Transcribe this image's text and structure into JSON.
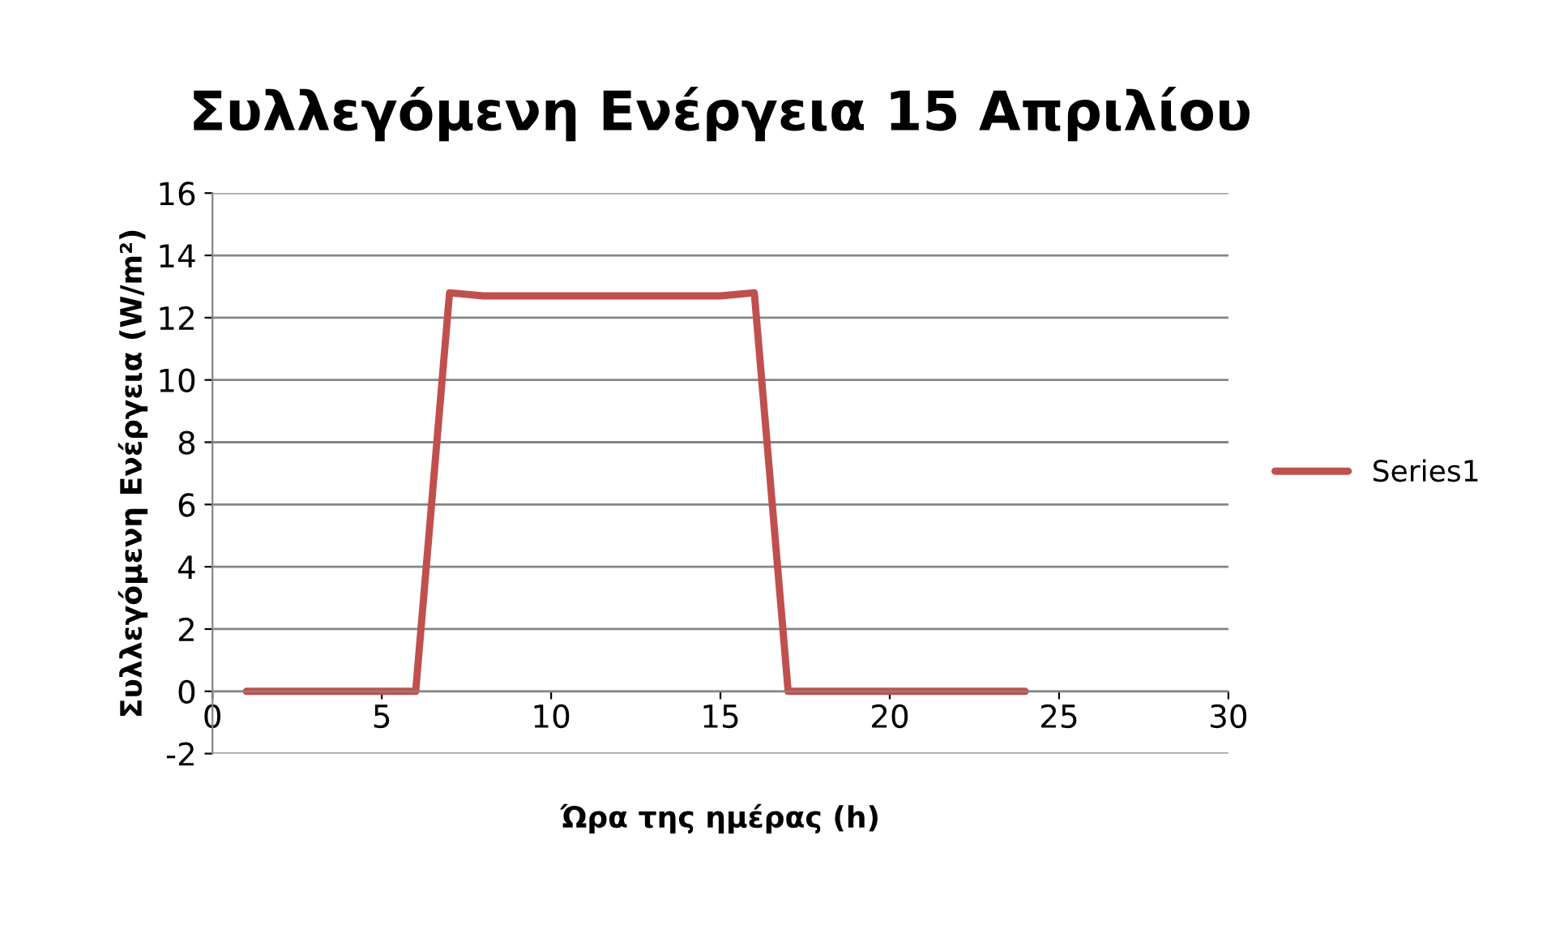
{
  "chart_data": {
    "type": "line",
    "title": "Συλλεγόμενη Ενέργεια 15 Απριλίου",
    "xlabel": "Ώρα της ημέρας (h)",
    "ylabel": "Συλλεγόμενη Ενέργεια (W/m²)",
    "x": [
      1,
      2,
      3,
      4,
      5,
      6,
      7,
      8,
      9,
      10,
      11,
      12,
      13,
      14,
      15,
      16,
      17,
      18,
      19,
      20,
      21,
      22,
      23,
      24
    ],
    "series": [
      {
        "name": "Series1",
        "color": "#c0504d",
        "values": [
          0,
          0,
          0,
          0,
          0,
          0,
          12.8,
          12.7,
          12.7,
          12.7,
          12.7,
          12.7,
          12.7,
          12.7,
          12.7,
          12.8,
          0,
          0,
          0,
          0,
          0,
          0,
          0,
          0
        ]
      }
    ],
    "xlim": [
      0,
      30
    ],
    "xticks": [
      0,
      5,
      10,
      15,
      20,
      25,
      30
    ],
    "ylim": [
      -2,
      16
    ],
    "yticks": [
      -2,
      0,
      2,
      4,
      6,
      8,
      10,
      12,
      14,
      16
    ],
    "grid": "y",
    "legend": "right",
    "marker": "none",
    "line_style": "solid"
  }
}
